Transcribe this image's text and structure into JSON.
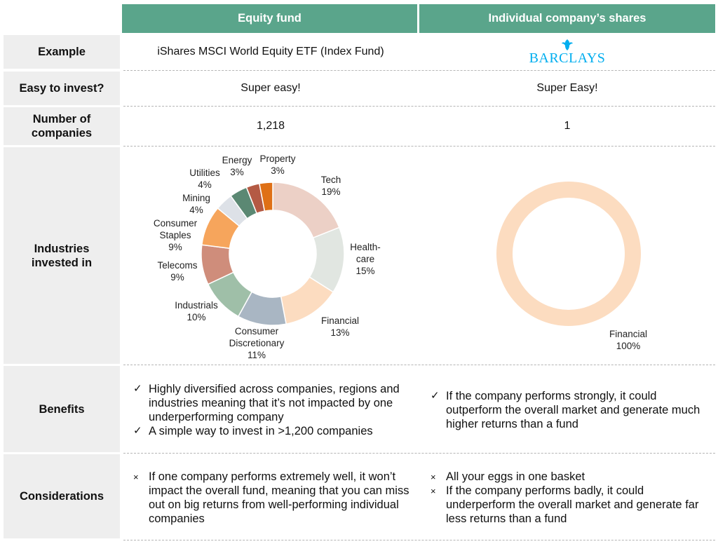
{
  "header": {
    "col1": "Equity fund",
    "col2": "Individual company’s shares"
  },
  "rows": {
    "example": {
      "label": "Example",
      "col1": "iShares MSCI World Equity ETF (Index Fund)",
      "col2_logo_text": "BARCLAYS",
      "col2_logo_icon": "eagle-icon"
    },
    "easy": {
      "label": "Easy to invest?",
      "col1": "Super easy!",
      "col2": "Super Easy!"
    },
    "number": {
      "label_line1": "Number of",
      "label_line2": "companies",
      "col1": "1,218",
      "col2": "1"
    },
    "industries": {
      "label_line1": "Industries",
      "label_line2": "invested in"
    },
    "benefits": {
      "label": "Benefits",
      "col1": [
        "Highly diversified across companies, regions and industries meaning that it’s not impacted by one underperforming company",
        "A simple way to invest in >1,200 companies"
      ],
      "col2": [
        "If the company performs strongly, it could outperform the overall market and generate much higher returns than a fund"
      ],
      "marker": "✓"
    },
    "considerations": {
      "label": "Considerations",
      "col1": [
        "If one company performs extremely well, it won’t impact the overall fund, meaning that you can miss out on big returns from well-performing individual companies"
      ],
      "col2": [
        "All your eggs in one basket",
        "If the company performs badly, it could underperform the overall market and generate far less returns than a fund"
      ],
      "marker": "×"
    }
  },
  "chart_data": [
    {
      "type": "pie",
      "donut": true,
      "categories": [
        "Tech",
        "Health-care",
        "Financial",
        "Consumer Discretionary",
        "Industrials",
        "Telecoms",
        "Consumer Staples",
        "Mining",
        "Utilities",
        "Energy",
        "Property"
      ],
      "values": [
        19,
        15,
        13,
        11,
        10,
        9,
        9,
        4,
        4,
        3,
        3
      ],
      "value_labels": [
        "19%",
        "15%",
        "13%",
        "11%",
        "10%",
        "9%",
        "9%",
        "4%",
        "4%",
        "3%",
        "3%"
      ],
      "colors": [
        "#ecd0c6",
        "#e1e6e1",
        "#fcdcc0",
        "#a9b6c3",
        "#9fbfa8",
        "#cf8d7b",
        "#f6a55c",
        "#dde1e7",
        "#5b8873",
        "#b45a44",
        "#df7016"
      ],
      "legend": "none"
    },
    {
      "type": "pie",
      "donut": true,
      "categories": [
        "Financial"
      ],
      "values": [
        100
      ],
      "value_labels": [
        "100%"
      ],
      "colors": [
        "#fcdcc0"
      ],
      "legend": "none"
    }
  ]
}
